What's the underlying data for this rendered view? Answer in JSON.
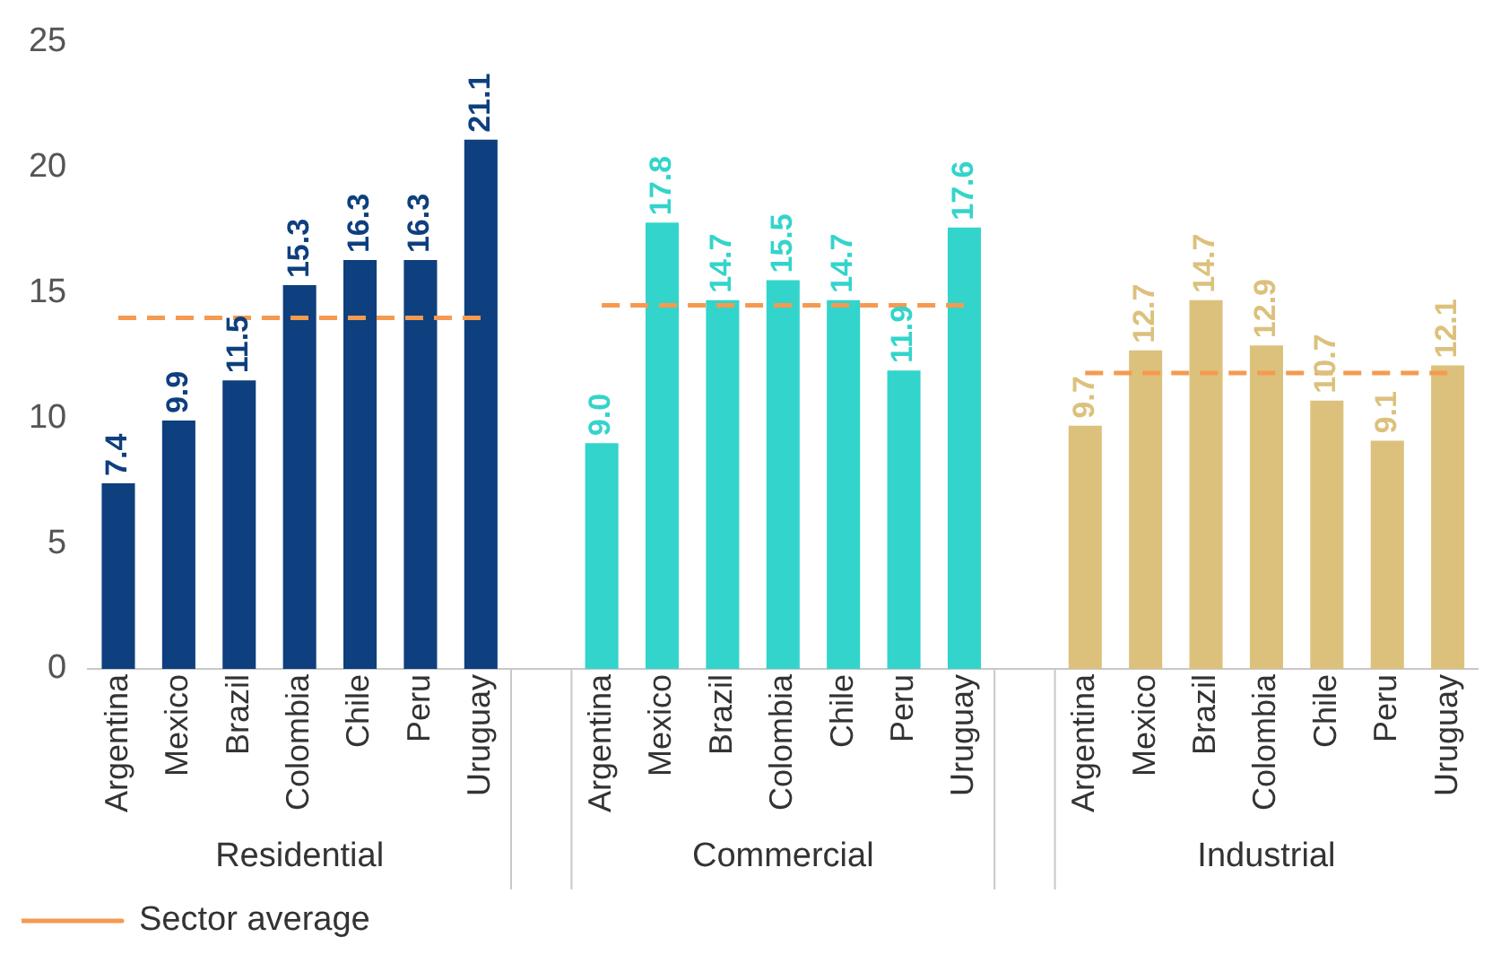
{
  "chart_data": {
    "type": "bar",
    "categories": [
      "Argentina",
      "Mexico",
      "Brazil",
      "Colombia",
      "Chile",
      "Peru",
      "Uruguay",
      null,
      "Argentina",
      "Mexico",
      "Brazil",
      "Colombia",
      "Chile",
      "Peru",
      "Uruguay",
      null,
      "Argentina",
      "Mexico",
      "Brazil",
      "Colombia",
      "Chile",
      "Peru",
      "Uruguay"
    ],
    "series": [
      {
        "color": "#0e3f7e",
        "values": [
          7.4,
          9.9,
          11.5,
          15.3,
          16.3,
          16.3,
          21.1,
          null,
          null,
          null,
          null,
          null,
          null,
          null,
          null,
          null,
          null,
          null,
          null,
          null,
          null,
          null,
          null
        ],
        "value_labels": [
          "7.4",
          "9.9",
          "11.5",
          "15.3",
          "16.3",
          "16.3",
          "21.1",
          null,
          null,
          null,
          null,
          null,
          null,
          null,
          null,
          null,
          null,
          null,
          null,
          null,
          null,
          null,
          null
        ]
      },
      {
        "color": "#33d4cb",
        "values": [
          null,
          null,
          null,
          null,
          null,
          null,
          null,
          null,
          9.0,
          17.8,
          14.7,
          15.5,
          14.7,
          11.9,
          17.6,
          null,
          null,
          null,
          null,
          null,
          null,
          null,
          null
        ],
        "value_labels": [
          null,
          null,
          null,
          null,
          null,
          null,
          null,
          null,
          "9.0",
          "17.8",
          "14.7",
          "15.5",
          "14.7",
          "11.9",
          "17.6",
          null,
          null,
          null,
          null,
          null,
          null,
          null,
          null
        ]
      },
      {
        "color": "#dcc17c",
        "values": [
          null,
          null,
          null,
          null,
          null,
          null,
          null,
          null,
          null,
          null,
          null,
          null,
          null,
          null,
          null,
          null,
          9.7,
          12.7,
          14.7,
          12.9,
          10.7,
          9.1,
          12.1
        ],
        "value_labels": [
          null,
          null,
          null,
          null,
          null,
          null,
          null,
          null,
          null,
          null,
          null,
          null,
          null,
          null,
          null,
          null,
          "9.7",
          "12.7",
          "14.7",
          "12.9",
          "10.7",
          "9.1",
          "12.1"
        ]
      },
      {
        "name": "Sector average",
        "type": "line",
        "color": "#f59a50",
        "line_style": "dashed",
        "marker": "none",
        "values": [
          14.0,
          14.0,
          14.0,
          14.0,
          14.0,
          14.0,
          14.0,
          null,
          14.5,
          14.5,
          14.5,
          14.5,
          14.5,
          14.5,
          14.5,
          null,
          11.8,
          11.8,
          11.8,
          11.8,
          11.8,
          11.8,
          11.8
        ]
      }
    ],
    "annotations": [
      "Residential",
      "Commercial",
      "Industrial"
    ],
    "ylim": [
      0,
      25
    ],
    "yticks": [
      0,
      5,
      10,
      15,
      20,
      25
    ],
    "grid": false,
    "legend": "bottom left"
  }
}
